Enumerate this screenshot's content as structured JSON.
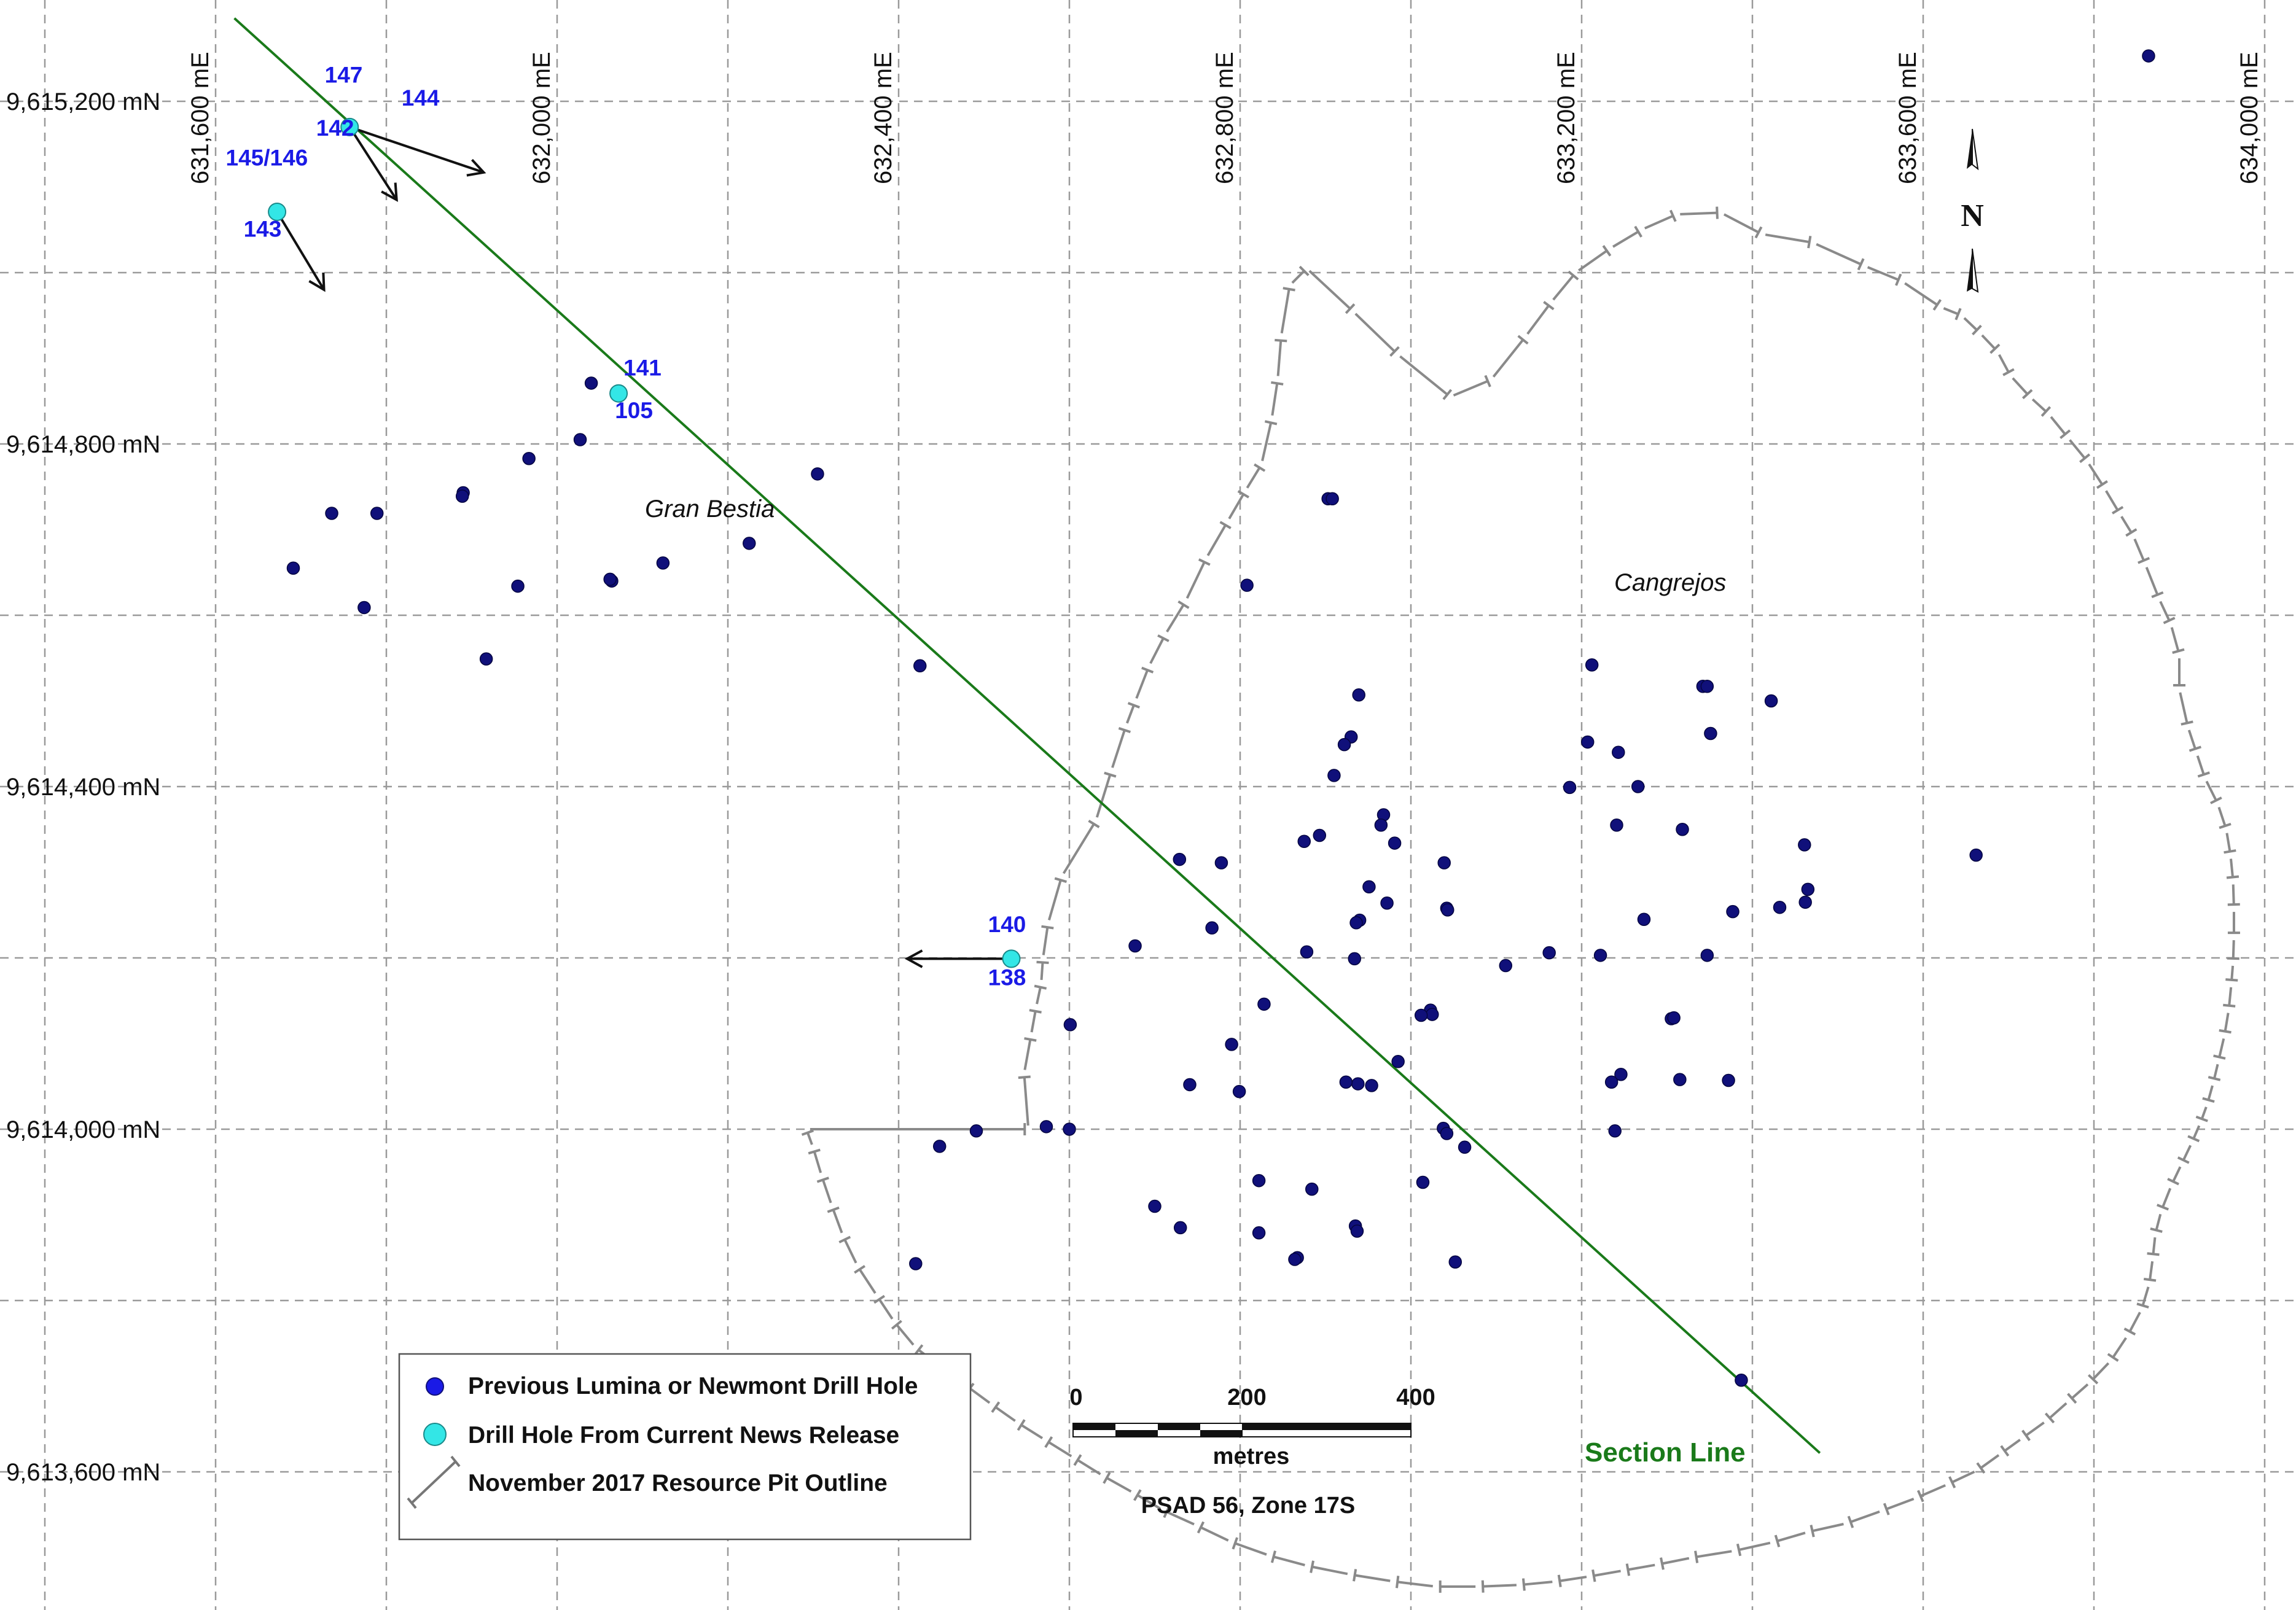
{
  "grid": {
    "eastings": [
      "631,600 mE",
      "632,000 mE",
      "632,400 mE",
      "632,800 mE",
      "633,200 mE",
      "633,600 mE",
      "634,000 mE"
    ],
    "northings": [
      "9,615,200 mN",
      "9,614,800 mN",
      "9,614,400 mN",
      "9,614,000 mN",
      "9,613,600 mN"
    ]
  },
  "colors": {
    "previous_hole": "#10107a",
    "new_hole": "#33e6e6",
    "section_line": "#1a7a1a",
    "pit_outline": "#8a8a8a",
    "hole_label": "#1a1ae6"
  },
  "labels": {
    "gran_bestia": "Gran Bestia",
    "cangrejos": "Cangrejos",
    "section_line": "Section Line",
    "north": "N"
  },
  "new_hole_labels": [
    {
      "text": "147",
      "e": 631750,
      "n": 615222
    },
    {
      "text": "144",
      "e": 631840,
      "n": 615195
    },
    {
      "text": "142",
      "e": 631740,
      "n": 615160
    },
    {
      "text": "145/146",
      "e": 631660,
      "n": 615125
    },
    {
      "text": "143",
      "e": 631655,
      "n": 615042
    },
    {
      "text": "141",
      "e": 632100,
      "n": 614880
    },
    {
      "text": "105",
      "e": 632090,
      "n": 614830
    },
    {
      "text": "140",
      "e": 632527,
      "n": 614230
    },
    {
      "text": "138",
      "e": 632527,
      "n": 614168
    }
  ],
  "new_holes": [
    {
      "e": 631757,
      "n": 615170
    },
    {
      "e": 631672,
      "n": 615071
    },
    {
      "e": 632072,
      "n": 614859
    },
    {
      "e": 632532,
      "n": 614199
    }
  ],
  "hole_traces": [
    {
      "from": [
        631757,
        615170
      ],
      "to": [
        631914,
        615117
      ]
    },
    {
      "from": [
        631757,
        615170
      ],
      "to": [
        631812,
        615085
      ]
    },
    {
      "from": [
        631672,
        615071
      ],
      "to": [
        631727,
        614980
      ]
    },
    {
      "from": [
        632532,
        614199
      ],
      "to": [
        632410,
        614199
      ]
    }
  ],
  "previous_holes": [
    [
      632040,
      614871
    ],
    [
      632027,
      614805
    ],
    [
      631967,
      614783
    ],
    [
      631890,
      614743
    ],
    [
      631889,
      614739
    ],
    [
      631736,
      614719
    ],
    [
      631789,
      614719
    ],
    [
      631691,
      614655
    ],
    [
      631774,
      614609
    ],
    [
      631954,
      614634
    ],
    [
      632064,
      614640
    ],
    [
      632062,
      614642
    ],
    [
      632124,
      614661
    ],
    [
      632225,
      614684
    ],
    [
      632305,
      614765
    ],
    [
      631917,
      614549
    ],
    [
      632808,
      614635
    ],
    [
      632903,
      614736
    ],
    [
      632908,
      614736
    ],
    [
      632425,
      614541
    ],
    [
      633212,
      614542
    ],
    [
      633342,
      614517
    ],
    [
      633347,
      614517
    ],
    [
      633422,
      614500
    ],
    [
      632939,
      614507
    ],
    [
      632930,
      614458
    ],
    [
      632922,
      614449
    ],
    [
      633207,
      614452
    ],
    [
      633243,
      614440
    ],
    [
      633351,
      614462
    ],
    [
      632893,
      614343
    ],
    [
      632910,
      614413
    ],
    [
      633186,
      614399
    ],
    [
      633266,
      614400
    ],
    [
      632968,
      614367
    ],
    [
      632965,
      614355
    ],
    [
      632981,
      614334
    ],
    [
      633039,
      614311
    ],
    [
      632875,
      614336
    ],
    [
      633241,
      614355
    ],
    [
      633318,
      614350
    ],
    [
      633461,
      614332
    ],
    [
      633662,
      614320
    ],
    [
      632778,
      614311
    ],
    [
      632729,
      614315
    ],
    [
      632951,
      614283
    ],
    [
      633465,
      614280
    ],
    [
      633462,
      614265
    ],
    [
      633432,
      614259
    ],
    [
      632972,
      614264
    ],
    [
      633042,
      614258
    ],
    [
      633043,
      614256
    ],
    [
      632940,
      614244
    ],
    [
      632936,
      614241
    ],
    [
      632767,
      614235
    ],
    [
      633377,
      614254
    ],
    [
      633273,
      614245
    ],
    [
      632677,
      614214
    ],
    [
      632878,
      614207
    ],
    [
      632934,
      614199
    ],
    [
      633222,
      614203
    ],
    [
      633111,
      614191
    ],
    [
      633162,
      614206
    ],
    [
      633347,
      614203
    ],
    [
      632828,
      614146
    ],
    [
      633023,
      614139
    ],
    [
      633025,
      614134
    ],
    [
      633012,
      614133
    ],
    [
      633305,
      614129
    ],
    [
      633308,
      614130
    ],
    [
      632790,
      614099
    ],
    [
      632601,
      614122
    ],
    [
      632985,
      614079
    ],
    [
      632954,
      614051
    ],
    [
      632938,
      614053
    ],
    [
      632741,
      614052
    ],
    [
      632799,
      614044
    ],
    [
      633246,
      614064
    ],
    [
      633235,
      614055
    ],
    [
      633315,
      614058
    ],
    [
      633372,
      614057
    ],
    [
      632924,
      614055
    ],
    [
      632573,
      614003
    ],
    [
      632600,
      614000
    ],
    [
      632491,
      613998
    ],
    [
      632448,
      613980
    ],
    [
      633038,
      614001
    ],
    [
      633042,
      613995
    ],
    [
      633063,
      613979
    ],
    [
      633239,
      613998
    ],
    [
      633014,
      613938
    ],
    [
      632822,
      613940
    ],
    [
      632884,
      613930
    ],
    [
      632700,
      613910
    ],
    [
      632730,
      613885
    ],
    [
      632822,
      613879
    ],
    [
      632935,
      613887
    ],
    [
      632937,
      613881
    ],
    [
      632867,
      613850
    ],
    [
      632864,
      613848
    ],
    [
      633052,
      613845
    ],
    [
      632420,
      613843
    ],
    [
      633387,
      613707
    ],
    [
      633864,
      615253
    ]
  ],
  "section_line": {
    "from": [
      631622,
      615297
    ],
    "to": [
      633479,
      613622
    ]
  },
  "pit_outline": [
    [
      632552,
      614000
    ],
    [
      632547,
      614065
    ],
    [
      632555,
      614109
    ],
    [
      632561,
      614142
    ],
    [
      632567,
      614170
    ],
    [
      632569,
      614199
    ],
    [
      632575,
      614240
    ],
    [
      632591,
      614295
    ],
    [
      632631,
      614360
    ],
    [
      632649,
      614418
    ],
    [
      632666,
      614470
    ],
    [
      632677,
      614499
    ],
    [
      632693,
      614540
    ],
    [
      632712,
      614577
    ],
    [
      632736,
      614616
    ],
    [
      632760,
      614666
    ],
    [
      632785,
      614709
    ],
    [
      632806,
      614745
    ],
    [
      632825,
      614776
    ],
    [
      632837,
      614829
    ],
    [
      632844,
      614875
    ],
    [
      632848,
      614925
    ],
    [
      632858,
      614985
    ],
    [
      632878,
      615005
    ],
    [
      632932,
      614955
    ],
    [
      632984,
      614905
    ],
    [
      633046,
      614855
    ],
    [
      633094,
      614875
    ],
    [
      633134,
      614925
    ],
    [
      633164,
      614965
    ],
    [
      633193,
      615000
    ],
    [
      633233,
      615028
    ],
    [
      633270,
      615050
    ],
    [
      633311,
      615068
    ],
    [
      633363,
      615070
    ],
    [
      633411,
      615045
    ],
    [
      633471,
      615035
    ],
    [
      633531,
      615008
    ],
    [
      633575,
      614990
    ],
    [
      633620,
      614960
    ],
    [
      633645,
      614950
    ],
    [
      633666,
      614930
    ],
    [
      633687,
      614908
    ],
    [
      633702,
      614880
    ],
    [
      633725,
      614855
    ],
    [
      633747,
      614835
    ],
    [
      633769,
      614808
    ],
    [
      633792,
      614780
    ],
    [
      633812,
      614749
    ],
    [
      633830,
      614719
    ],
    [
      633846,
      614693
    ],
    [
      633860,
      614660
    ],
    [
      633876,
      614620
    ],
    [
      633890,
      614590
    ],
    [
      633900,
      614554
    ],
    [
      633900,
      614514
    ],
    [
      633910,
      614470
    ],
    [
      633920,
      614440
    ],
    [
      633930,
      614410
    ],
    [
      633945,
      614380
    ],
    [
      633955,
      614350
    ],
    [
      633960,
      614320
    ],
    [
      633963,
      614290
    ],
    [
      633964,
      614258
    ],
    [
      633964,
      614225
    ],
    [
      633963,
      614195
    ],
    [
      633961,
      614170
    ],
    [
      633958,
      614140
    ],
    [
      633953,
      614110
    ],
    [
      633946,
      614080
    ],
    [
      633940,
      614055
    ],
    [
      633933,
      614030
    ],
    [
      633925,
      614008
    ],
    [
      633915,
      613985
    ],
    [
      633903,
      613960
    ],
    [
      633891,
      613935
    ],
    [
      633879,
      613905
    ],
    [
      633872,
      613878
    ],
    [
      633869,
      613850
    ],
    [
      633865,
      613820
    ],
    [
      633856,
      613790
    ],
    [
      633840,
      613760
    ],
    [
      633820,
      613730
    ],
    [
      633796,
      613705
    ],
    [
      633771,
      613683
    ],
    [
      633745,
      613660
    ],
    [
      633717,
      613640
    ],
    [
      633692,
      613622
    ],
    [
      633664,
      613602
    ],
    [
      633630,
      613586
    ],
    [
      633593,
      613570
    ],
    [
      633553,
      613555
    ],
    [
      633511,
      613540
    ],
    [
      633466,
      613530
    ],
    [
      633425,
      613518
    ],
    [
      633380,
      613508
    ],
    [
      633330,
      613500
    ],
    [
      633290,
      613492
    ],
    [
      633250,
      613485
    ],
    [
      633210,
      613478
    ],
    [
      633170,
      613472
    ],
    [
      633128,
      613468
    ],
    [
      633080,
      613466
    ],
    [
      633030,
      613466
    ],
    [
      632980,
      613472
    ],
    [
      632930,
      613480
    ],
    [
      632880,
      613490
    ],
    [
      632835,
      613502
    ],
    [
      632790,
      613518
    ],
    [
      632750,
      613537
    ],
    [
      632710,
      613555
    ],
    [
      632676,
      613575
    ],
    [
      632640,
      613595
    ],
    [
      632606,
      613616
    ],
    [
      632572,
      613637
    ],
    [
      632540,
      613657
    ],
    [
      632510,
      613678
    ],
    [
      632480,
      613700
    ],
    [
      632450,
      613722
    ],
    [
      632420,
      613745
    ],
    [
      632395,
      613775
    ],
    [
      632375,
      613805
    ],
    [
      632352,
      613840
    ],
    [
      632335,
      613875
    ],
    [
      632322,
      613910
    ],
    [
      632310,
      613945
    ],
    [
      632300,
      613978
    ],
    [
      632292,
      614000
    ],
    [
      632552,
      614000
    ]
  ],
  "legend": {
    "previous": "Previous Lumina or Newmont Drill Hole",
    "current": "Drill Hole From Current News Release",
    "pit": "November 2017 Resource Pit Outline"
  },
  "scale_bar": {
    "ticks": [
      "0",
      "200",
      "400"
    ],
    "unit": "metres",
    "datum": "PSAD 56, Zone 17S"
  }
}
